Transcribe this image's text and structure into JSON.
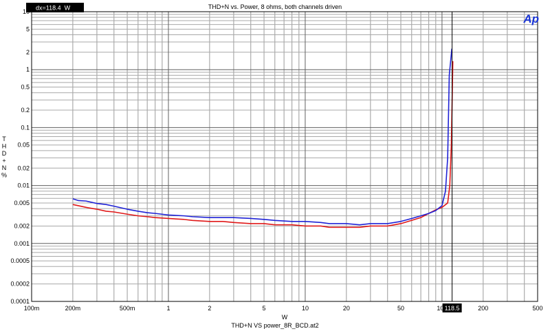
{
  "chart_data": {
    "type": "line",
    "title": "THD+N vs. Power, 8 ohms, both channels driven",
    "xlabel": "W",
    "ylabel": "THD+N %",
    "footer": "THD+N VS power_8R_BCD.at2",
    "xscale": "log",
    "yscale": "log",
    "xlim": [
      0.1,
      500
    ],
    "ylim": [
      0.0001,
      10
    ],
    "grid": true,
    "x_ticks": [
      {
        "v": 0.1,
        "label": "100m"
      },
      {
        "v": 0.2,
        "label": "200m"
      },
      {
        "v": 0.5,
        "label": "500m"
      },
      {
        "v": 1,
        "label": "1"
      },
      {
        "v": 2,
        "label": "2"
      },
      {
        "v": 5,
        "label": "5"
      },
      {
        "v": 10,
        "label": "10"
      },
      {
        "v": 20,
        "label": "20"
      },
      {
        "v": 50,
        "label": "50"
      },
      {
        "v": 100,
        "label": "100"
      },
      {
        "v": 200,
        "label": "200"
      },
      {
        "v": 500,
        "label": "500"
      }
    ],
    "y_ticks": [
      {
        "v": 10,
        "label": "10"
      },
      {
        "v": 5,
        "label": "5"
      },
      {
        "v": 2,
        "label": "2"
      },
      {
        "v": 1,
        "label": "1"
      },
      {
        "v": 0.5,
        "label": "0.5"
      },
      {
        "v": 0.2,
        "label": "0.2"
      },
      {
        "v": 0.1,
        "label": "0.1"
      },
      {
        "v": 0.05,
        "label": "0.05"
      },
      {
        "v": 0.02,
        "label": "0.02"
      },
      {
        "v": 0.01,
        "label": "0.01"
      },
      {
        "v": 0.005,
        "label": "0.005"
      },
      {
        "v": 0.002,
        "label": "0.002"
      },
      {
        "v": 0.001,
        "label": "0.001"
      },
      {
        "v": 0.0005,
        "label": "0.0005"
      },
      {
        "v": 0.0002,
        "label": "0.0002"
      },
      {
        "v": 0.0001,
        "label": "0.0001"
      }
    ],
    "series": [
      {
        "color": "#1f22d6",
        "x": [
          0.2,
          0.22,
          0.25,
          0.3,
          0.35,
          0.4,
          0.5,
          0.6,
          0.7,
          0.8,
          1,
          1.3,
          1.5,
          2,
          2.5,
          3,
          4,
          5,
          6,
          8,
          10,
          13,
          15,
          20,
          25,
          30,
          40,
          50,
          60,
          70,
          80,
          90,
          100,
          106,
          110,
          113,
          118
        ],
        "y": [
          0.0059,
          0.0055,
          0.0054,
          0.0049,
          0.0047,
          0.0044,
          0.0039,
          0.0036,
          0.0034,
          0.0033,
          0.0031,
          0.003,
          0.0029,
          0.0028,
          0.0028,
          0.0028,
          0.0027,
          0.0026,
          0.0025,
          0.0024,
          0.0024,
          0.0023,
          0.0022,
          0.0022,
          0.0021,
          0.0022,
          0.0022,
          0.0024,
          0.0027,
          0.003,
          0.0033,
          0.0037,
          0.0045,
          0.008,
          0.03,
          0.8,
          2.3
        ]
      },
      {
        "color": "#e01818",
        "x": [
          0.2,
          0.25,
          0.3,
          0.35,
          0.4,
          0.5,
          0.6,
          0.7,
          0.8,
          1,
          1.3,
          1.5,
          2,
          2.5,
          3,
          4,
          5,
          6,
          8,
          10,
          13,
          15,
          20,
          25,
          30,
          40,
          50,
          60,
          70,
          80,
          90,
          100,
          110,
          114,
          117,
          120
        ],
        "y": [
          0.0047,
          0.0042,
          0.0039,
          0.0036,
          0.0035,
          0.0032,
          0.003,
          0.0029,
          0.0028,
          0.0027,
          0.0026,
          0.0025,
          0.0024,
          0.0024,
          0.0023,
          0.0022,
          0.0022,
          0.0021,
          0.0021,
          0.002,
          0.002,
          0.0019,
          0.0019,
          0.0019,
          0.002,
          0.002,
          0.0022,
          0.0025,
          0.0028,
          0.0033,
          0.0038,
          0.0042,
          0.005,
          0.01,
          0.05,
          1.4
        ]
      }
    ],
    "cursor": {
      "x": 118.5,
      "x_label": "118.5",
      "readout": "dx=118.4  W"
    },
    "logo_text": "Ap"
  }
}
